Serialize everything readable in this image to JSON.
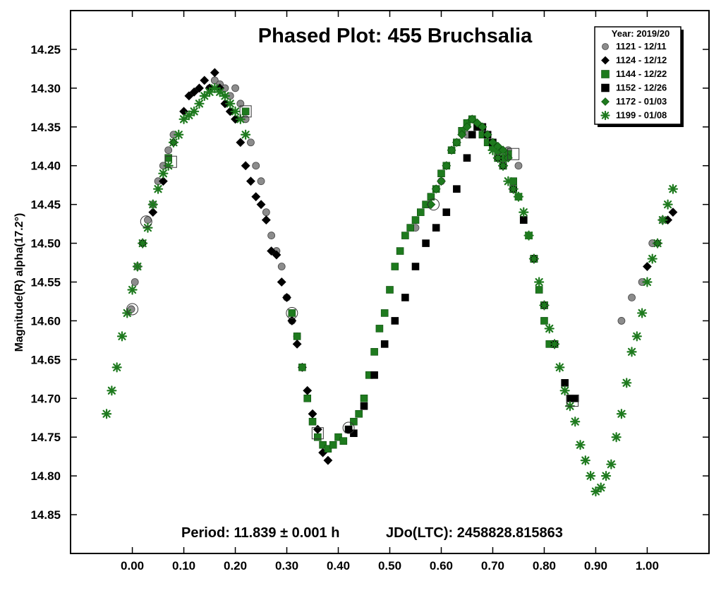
{
  "chart_data": {
    "type": "scatter",
    "title": "Phased Plot: 455 Bruchsalia",
    "ylabel": "Magnitude(R) alpha(17.2°)",
    "xlabel": "",
    "period_text": "Period: 11.839 ± 0.001 h",
    "epoch_text": "JDo(LTC): 2458828.815863",
    "legend_title": "Year: 2019/20",
    "xlim": [
      -0.12,
      1.12
    ],
    "ylim": [
      14.9,
      14.2
    ],
    "y_inverted": true,
    "x_ticks": [
      "0.00",
      "0.10",
      "0.20",
      "0.30",
      "0.40",
      "0.50",
      "0.60",
      "0.70",
      "0.80",
      "0.90",
      "1.00"
    ],
    "y_ticks": [
      "14.25",
      "14.30",
      "14.35",
      "14.40",
      "14.45",
      "14.50",
      "14.55",
      "14.60",
      "14.65",
      "14.70",
      "14.75",
      "14.80",
      "14.85"
    ],
    "series": [
      {
        "name": "1121 - 12/11",
        "marker": "circle",
        "color": "#8c8c8c",
        "x": [
          -0.002,
          0.005,
          0.01,
          0.02,
          0.03,
          0.04,
          0.05,
          0.06,
          0.07,
          0.08,
          0.15,
          0.16,
          0.17,
          0.18,
          0.19,
          0.2,
          0.21,
          0.22,
          0.23,
          0.24,
          0.25,
          0.26,
          0.27,
          0.28,
          0.29,
          0.3,
          0.31,
          0.32,
          0.33,
          0.55,
          0.6,
          0.65,
          0.7,
          0.73,
          0.75,
          0.95,
          0.97,
          0.99,
          1.01,
          1.03
        ],
        "y": [
          14.585,
          14.55,
          14.53,
          14.5,
          14.47,
          14.45,
          14.42,
          14.4,
          14.38,
          14.36,
          14.3,
          14.29,
          14.295,
          14.3,
          14.31,
          14.3,
          14.32,
          14.34,
          14.37,
          14.4,
          14.42,
          14.46,
          14.49,
          14.51,
          14.53,
          14.57,
          14.6,
          14.62,
          14.66,
          14.48,
          14.42,
          14.36,
          14.37,
          14.38,
          14.4,
          14.6,
          14.57,
          14.55,
          14.5,
          14.47
        ]
      },
      {
        "name": "1124 - 12/12",
        "marker": "diamond",
        "color": "#000000",
        "x": [
          0.02,
          0.04,
          0.06,
          0.08,
          0.1,
          0.11,
          0.12,
          0.13,
          0.14,
          0.15,
          0.16,
          0.17,
          0.18,
          0.19,
          0.2,
          0.21,
          0.22,
          0.23,
          0.24,
          0.25,
          0.26,
          0.27,
          0.28,
          0.29,
          0.3,
          0.31,
          0.32,
          0.33,
          0.34,
          0.35,
          0.36,
          0.37,
          0.38,
          1.0,
          1.02,
          1.04,
          1.05
        ],
        "y": [
          14.5,
          14.46,
          14.42,
          14.37,
          14.33,
          14.31,
          14.305,
          14.3,
          14.29,
          14.3,
          14.28,
          14.3,
          14.32,
          14.33,
          14.34,
          14.37,
          14.4,
          14.42,
          14.44,
          14.45,
          14.47,
          14.51,
          14.515,
          14.55,
          14.57,
          14.6,
          14.63,
          14.66,
          14.69,
          14.72,
          14.74,
          14.77,
          14.78,
          14.53,
          14.5,
          14.47,
          14.46
        ]
      },
      {
        "name": "1144 - 12/22",
        "marker": "square",
        "color": "#1e7a1e",
        "x": [
          0.07,
          0.22,
          0.31,
          0.32,
          0.33,
          0.34,
          0.35,
          0.36,
          0.37,
          0.38,
          0.39,
          0.4,
          0.41,
          0.42,
          0.43,
          0.44,
          0.45,
          0.46,
          0.47,
          0.48,
          0.49,
          0.5,
          0.51,
          0.52,
          0.53,
          0.54,
          0.55,
          0.56,
          0.57,
          0.58,
          0.59,
          0.6,
          0.61,
          0.62,
          0.63,
          0.64,
          0.65,
          0.66,
          0.67,
          0.68,
          0.69,
          0.7,
          0.71,
          0.72,
          0.73,
          0.74,
          0.75,
          0.76,
          0.77,
          0.78,
          0.79,
          0.8,
          0.81
        ],
        "y": [
          14.39,
          14.33,
          14.59,
          14.62,
          14.66,
          14.7,
          14.73,
          14.75,
          14.76,
          14.765,
          14.76,
          14.75,
          14.755,
          14.74,
          14.73,
          14.72,
          14.7,
          14.67,
          14.64,
          14.61,
          14.59,
          14.56,
          14.53,
          14.51,
          14.49,
          14.48,
          14.47,
          14.46,
          14.45,
          14.44,
          14.43,
          14.41,
          14.4,
          14.38,
          14.37,
          14.355,
          14.345,
          14.34,
          14.35,
          14.36,
          14.37,
          14.375,
          14.38,
          14.39,
          14.385,
          14.42,
          14.44,
          14.47,
          14.49,
          14.52,
          14.56,
          14.6,
          14.63
        ]
      },
      {
        "name": "1152 - 12/26",
        "marker": "square",
        "color": "#000000",
        "x": [
          0.42,
          0.43,
          0.45,
          0.47,
          0.49,
          0.51,
          0.53,
          0.55,
          0.57,
          0.59,
          0.61,
          0.63,
          0.65,
          0.66,
          0.67,
          0.68,
          0.69,
          0.7,
          0.71,
          0.72,
          0.74,
          0.76,
          0.78,
          0.8,
          0.82,
          0.84,
          0.85,
          0.86
        ],
        "y": [
          14.74,
          14.745,
          14.71,
          14.67,
          14.63,
          14.6,
          14.57,
          14.53,
          14.5,
          14.48,
          14.46,
          14.43,
          14.39,
          14.36,
          14.35,
          14.35,
          14.36,
          14.37,
          14.39,
          14.4,
          14.43,
          14.47,
          14.52,
          14.58,
          14.63,
          14.68,
          14.7,
          14.7
        ]
      },
      {
        "name": "1172 - 01/03",
        "marker": "diamond",
        "color": "#1e7a1e",
        "x": [
          0.58,
          0.59,
          0.6,
          0.61,
          0.62,
          0.63,
          0.64,
          0.65,
          0.66,
          0.67,
          0.68,
          0.69,
          0.7,
          0.71,
          0.72,
          0.73
        ],
        "y": [
          14.45,
          14.43,
          14.42,
          14.4,
          14.38,
          14.37,
          14.36,
          14.35,
          14.34,
          14.345,
          14.35,
          14.36,
          14.37,
          14.375,
          14.38,
          14.39
        ]
      },
      {
        "name": "1199 - 01/08",
        "marker": "asterisk",
        "color": "#1e7a1e",
        "x": [
          -0.05,
          -0.04,
          -0.03,
          -0.02,
          -0.01,
          0.0,
          0.01,
          0.02,
          0.03,
          0.04,
          0.05,
          0.06,
          0.07,
          0.08,
          0.09,
          0.1,
          0.11,
          0.12,
          0.13,
          0.14,
          0.15,
          0.16,
          0.17,
          0.18,
          0.19,
          0.2,
          0.21,
          0.22,
          0.7,
          0.71,
          0.72,
          0.73,
          0.74,
          0.75,
          0.76,
          0.77,
          0.78,
          0.79,
          0.8,
          0.81,
          0.82,
          0.83,
          0.84,
          0.85,
          0.86,
          0.87,
          0.88,
          0.89,
          0.9,
          0.91,
          0.92,
          0.93,
          0.94,
          0.95,
          0.96,
          0.97,
          0.98,
          0.99,
          1.0,
          1.01,
          1.02,
          1.03,
          1.04,
          1.05
        ],
        "y": [
          14.72,
          14.69,
          14.66,
          14.62,
          14.59,
          14.56,
          14.53,
          14.5,
          14.48,
          14.45,
          14.43,
          14.41,
          14.4,
          14.37,
          14.36,
          14.34,
          14.335,
          14.33,
          14.32,
          14.31,
          14.305,
          14.3,
          14.305,
          14.31,
          14.32,
          14.33,
          14.34,
          14.36,
          14.38,
          14.39,
          14.4,
          14.42,
          14.43,
          14.44,
          14.46,
          14.49,
          14.52,
          14.55,
          14.58,
          14.61,
          14.63,
          14.66,
          14.69,
          14.71,
          14.73,
          14.76,
          14.78,
          14.8,
          14.82,
          14.815,
          14.8,
          14.785,
          14.75,
          14.72,
          14.68,
          14.64,
          14.62,
          14.59,
          14.55,
          14.52,
          14.5,
          14.47,
          14.45,
          14.43
        ]
      }
    ],
    "highlighted_points": [
      {
        "x": 0.0,
        "y": 14.585,
        "marker": "circle"
      },
      {
        "x": 0.027,
        "y": 14.472,
        "marker": "circle"
      },
      {
        "x": 0.075,
        "y": 14.395,
        "marker": "square"
      },
      {
        "x": 0.22,
        "y": 14.33,
        "marker": "square"
      },
      {
        "x": 0.31,
        "y": 14.59,
        "marker": "circle"
      },
      {
        "x": 0.36,
        "y": 14.745,
        "marker": "square"
      },
      {
        "x": 0.42,
        "y": 14.738,
        "marker": "circle"
      },
      {
        "x": 0.585,
        "y": 14.45,
        "marker": "circle"
      },
      {
        "x": 0.74,
        "y": 14.385,
        "marker": "square"
      },
      {
        "x": 0.855,
        "y": 14.703,
        "marker": "square"
      }
    ],
    "legend_position": "top-right",
    "grid": false
  }
}
